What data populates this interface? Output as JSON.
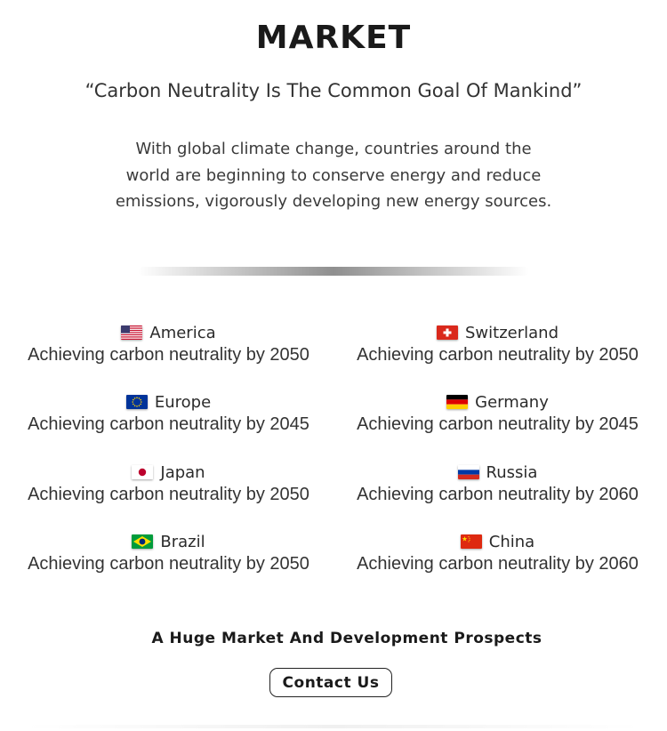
{
  "header": {
    "title": "MARKET",
    "quote": "“Carbon Neutrality Is The Common Goal Of Mankind”",
    "description": "With global climate change, countries around the world are beginning to conserve energy and reduce emissions, vigorously developing new energy sources."
  },
  "countries": [
    {
      "name": "America",
      "goal": "Achieving carbon neutrality by 2050",
      "flag": "us-flag-icon"
    },
    {
      "name": "Switzerland",
      "goal": "Achieving carbon neutrality by 2050",
      "flag": "switzerland-flag-icon"
    },
    {
      "name": "Europe",
      "goal": "Achieving carbon neutrality by 2045",
      "flag": "eu-flag-icon"
    },
    {
      "name": "Germany",
      "goal": "Achieving carbon neutrality by 2045",
      "flag": "germany-flag-icon"
    },
    {
      "name": "Japan",
      "goal": "Achieving carbon neutrality by 2050",
      "flag": "japan-flag-icon"
    },
    {
      "name": "Russia",
      "goal": "Achieving carbon neutrality by 2060",
      "flag": "russia-flag-icon"
    },
    {
      "name": "Brazil",
      "goal": "Achieving carbon neutrality by 2050",
      "flag": "brazil-flag-icon"
    },
    {
      "name": "China",
      "goal": "Achieving carbon neutrality by 2060",
      "flag": "china-flag-icon"
    }
  ],
  "footer": {
    "prospects": "A Huge Market And Development Prospects",
    "contact_label": "Contact Us"
  }
}
